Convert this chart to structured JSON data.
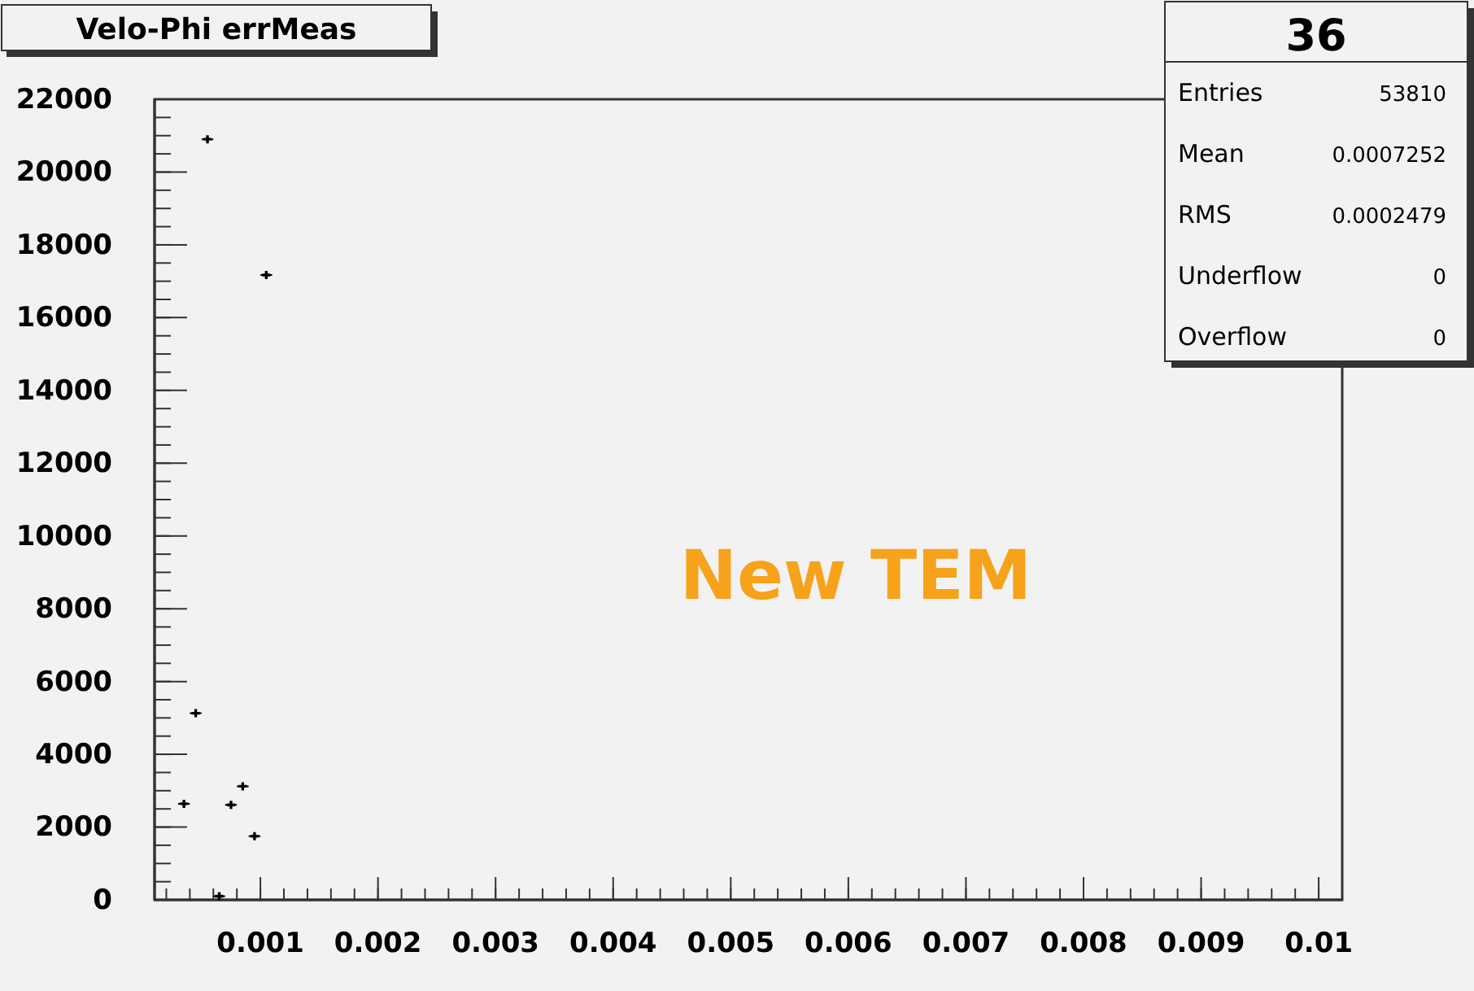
{
  "chart_data": {
    "type": "scatter",
    "title": "Velo-Phi errMeas",
    "x": [
      0.00035,
      0.00045,
      0.00055,
      0.00065,
      0.00075,
      0.00085,
      0.00095,
      0.00105
    ],
    "series": [
      {
        "color": "#000000",
        "values": [
          2640,
          5130,
          20900,
          100,
          2610,
          3120,
          1750,
          17170
        ],
        "xerrors": [
          5e-05,
          5e-05,
          5e-05,
          5e-05,
          5e-05,
          5e-05,
          5e-05,
          5e-05
        ]
      }
    ],
    "marker": "cross",
    "xlim": [
      0.0001,
      0.0102
    ],
    "xticks": [
      0.001,
      0.002,
      0.003,
      0.004,
      0.005,
      0.006,
      0.007,
      0.008,
      0.009,
      0.01
    ],
    "ylim": [
      0,
      22000
    ],
    "yticks": [
      0,
      2000,
      4000,
      6000,
      8000,
      10000,
      12000,
      14000,
      16000,
      18000,
      20000,
      22000
    ],
    "grid": false,
    "annotations": [
      "36",
      "Entries",
      "53810",
      "Mean",
      "0.0007252",
      "RMS",
      "0.0002479",
      "Underflow",
      "0",
      "Overflow",
      "0",
      "New TEM"
    ]
  }
}
